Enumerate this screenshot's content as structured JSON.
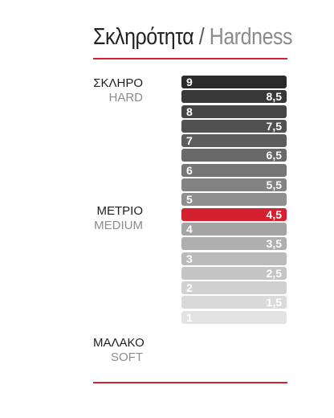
{
  "title": {
    "greek": "Σκληρότητα",
    "separator": "/",
    "english": "Hardness"
  },
  "labels": {
    "hard": {
      "greek": "ΣΚΛΗΡΟ",
      "english": "HARD"
    },
    "medium": {
      "greek": "ΜΕΤΡΙΟ",
      "english": "MEDIUM"
    },
    "soft": {
      "greek": "ΜΑΛΑΚΟ",
      "english": "SOFT"
    }
  },
  "scale": {
    "levels": [
      {
        "value": "9",
        "color": "#2a2a2a"
      },
      {
        "value": "8,5",
        "color": "#383838"
      },
      {
        "value": "8",
        "color": "#454545"
      },
      {
        "value": "7,5",
        "color": "#515151"
      },
      {
        "value": "7",
        "color": "#5d5d5d"
      },
      {
        "value": "6,5",
        "color": "#696969"
      },
      {
        "value": "6",
        "color": "#767676"
      },
      {
        "value": "5,5",
        "color": "#838383"
      },
      {
        "value": "5",
        "color": "#8f8f8f"
      },
      {
        "value": "4,5",
        "color": "#d42030"
      },
      {
        "value": "4",
        "color": "#a4a4a4"
      },
      {
        "value": "3,5",
        "color": "#afafaf"
      },
      {
        "value": "3",
        "color": "#bababa"
      },
      {
        "value": "2,5",
        "color": "#c5c5c5"
      },
      {
        "value": "2",
        "color": "#d0d0d0"
      },
      {
        "value": "1,5",
        "color": "#dadada"
      },
      {
        "value": "1",
        "color": "#e3e3e3"
      }
    ],
    "highlighted_value": "4,5"
  },
  "colors": {
    "accent_red": "#d42030",
    "rule_red": "#d42030"
  }
}
